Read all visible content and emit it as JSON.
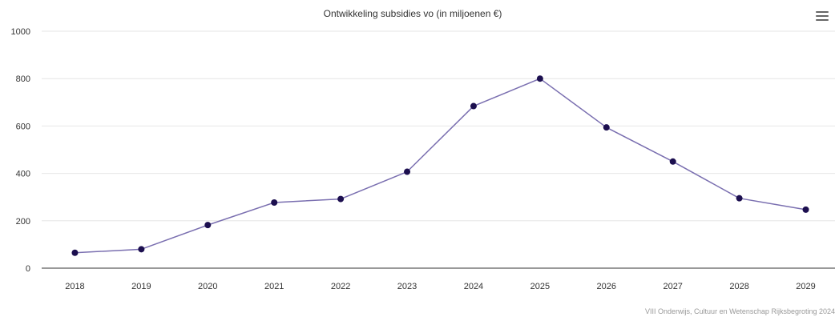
{
  "title": "Ontwikkeling subsidies vo (in miljoenen €)",
  "credits": "VIII Onderwijs, Cultuur en Wetenschap Rijksbegroting 2024",
  "menu_icon": "hamburger-menu-icon",
  "colors": {
    "line": "#7a6fb0",
    "marker": "#1c0f4f",
    "grid": "#e6e6e6",
    "axis": "#333333",
    "label": "#333333",
    "credits": "#999999"
  },
  "chart_data": {
    "type": "line",
    "title": "Ontwikkeling subsidies vo (in miljoenen €)",
    "xlabel": "",
    "ylabel": "",
    "categories": [
      "2018",
      "2019",
      "2020",
      "2021",
      "2022",
      "2023",
      "2024",
      "2025",
      "2026",
      "2027",
      "2028",
      "2029"
    ],
    "series": [
      {
        "values": [
          65,
          80,
          182,
          277,
          292,
          407,
          684,
          800,
          594,
          450,
          295,
          247
        ]
      }
    ],
    "ylim": [
      0,
      1000
    ],
    "yticks": [
      0,
      200,
      400,
      600,
      800,
      1000
    ],
    "grid": true,
    "legend": "none"
  }
}
